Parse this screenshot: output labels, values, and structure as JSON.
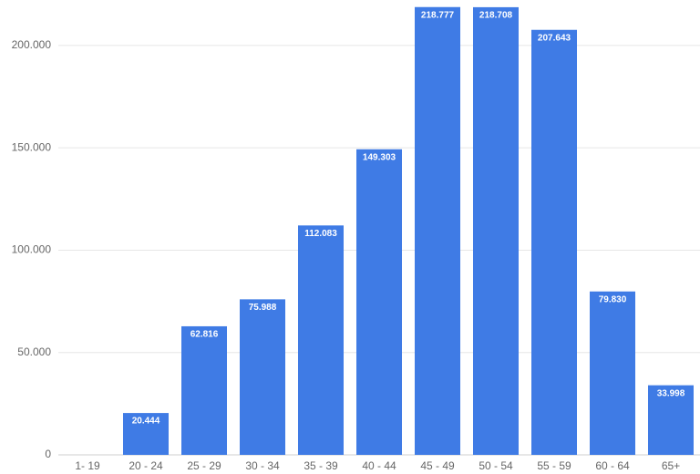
{
  "chart_data": {
    "type": "bar",
    "categories": [
      "1- 19",
      "20 - 24",
      "25 - 29",
      "30 - 34",
      "35 - 39",
      "40 - 44",
      "45 - 49",
      "50 - 54",
      "55 - 59",
      "60 - 64",
      "65+"
    ],
    "values": [
      null,
      20444,
      62816,
      75988,
      112083,
      149303,
      218777,
      218708,
      207643,
      79830,
      33998
    ],
    "value_labels": [
      null,
      "20.444",
      "62.816",
      "75.988",
      "112.083",
      "149.303",
      "218.777",
      "218.708",
      "207.643",
      "79.830",
      "33.998"
    ],
    "color": "#3f7be5",
    "ylim": [
      0,
      220000
    ],
    "yticks": [
      0,
      {
        "value": 50000,
        "label": "50.000"
      },
      {
        "value": 100000,
        "label": "100.000"
      },
      {
        "value": 150000,
        "label": "150.000"
      },
      {
        "value": 200000,
        "label": "200.000"
      }
    ],
    "grid": true
  }
}
